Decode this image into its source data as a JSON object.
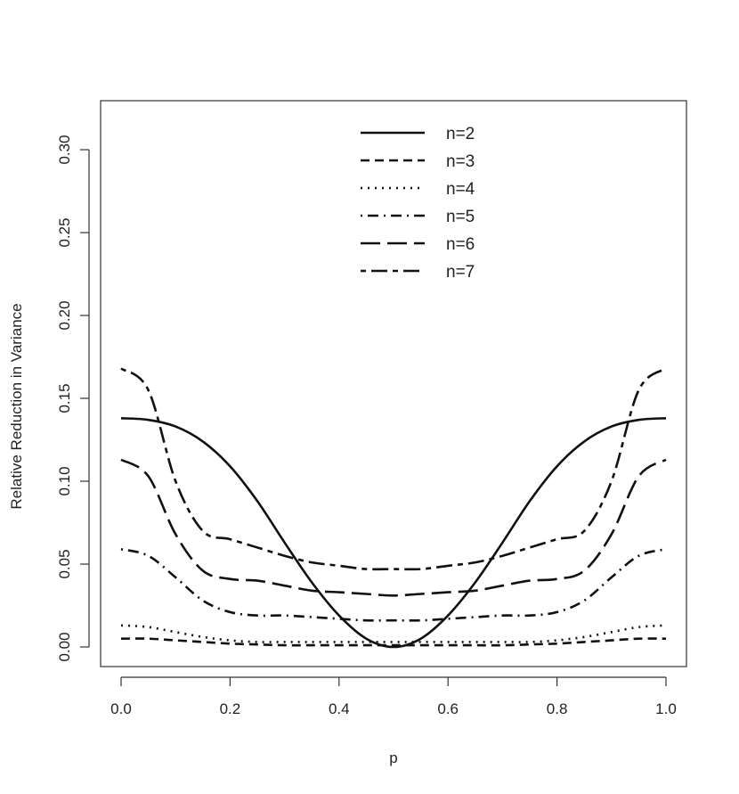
{
  "chart_data": {
    "type": "line",
    "title": "",
    "xlabel": "p",
    "ylabel": "Relative Reduction in Variance",
    "xlim": [
      0.0,
      1.0
    ],
    "ylim": [
      0.0,
      0.3
    ],
    "x_ticks": [
      "0.0",
      "0.2",
      "0.4",
      "0.6",
      "0.8",
      "1.0"
    ],
    "y_ticks": [
      "0.00",
      "0.05",
      "0.10",
      "0.15",
      "0.20",
      "0.25",
      "0.30"
    ],
    "legend_position": "top-center",
    "grid": false,
    "x": [
      0.0,
      0.05,
      0.1,
      0.15,
      0.2,
      0.25,
      0.3,
      0.35,
      0.4,
      0.45,
      0.5,
      0.55,
      0.6,
      0.65,
      0.7,
      0.75,
      0.8,
      0.85,
      0.9,
      0.95,
      1.0
    ],
    "series": [
      {
        "name": "n=2",
        "dash": "solid",
        "values": [
          0.138,
          0.137,
          0.133,
          0.124,
          0.109,
          0.088,
          0.063,
          0.039,
          0.019,
          0.005,
          0.0,
          0.005,
          0.019,
          0.039,
          0.063,
          0.088,
          0.109,
          0.124,
          0.133,
          0.137,
          0.138
        ]
      },
      {
        "name": "n=3",
        "dash": "dashed",
        "values": [
          0.005,
          0.005,
          0.004,
          0.003,
          0.002,
          0.0015,
          0.001,
          0.001,
          0.001,
          0.001,
          0.001,
          0.001,
          0.001,
          0.001,
          0.001,
          0.0015,
          0.002,
          0.003,
          0.004,
          0.005,
          0.005
        ]
      },
      {
        "name": "n=4",
        "dash": "dotted",
        "values": [
          0.013,
          0.012,
          0.009,
          0.006,
          0.004,
          0.003,
          0.003,
          0.003,
          0.003,
          0.003,
          0.003,
          0.003,
          0.003,
          0.003,
          0.003,
          0.003,
          0.004,
          0.006,
          0.009,
          0.012,
          0.013
        ]
      },
      {
        "name": "n=5",
        "dash": "dotdash",
        "values": [
          0.059,
          0.055,
          0.042,
          0.028,
          0.021,
          0.019,
          0.019,
          0.018,
          0.017,
          0.016,
          0.016,
          0.016,
          0.017,
          0.018,
          0.019,
          0.019,
          0.021,
          0.028,
          0.042,
          0.055,
          0.059
        ]
      },
      {
        "name": "n=6",
        "dash": "longdash",
        "values": [
          0.113,
          0.103,
          0.068,
          0.046,
          0.041,
          0.04,
          0.037,
          0.034,
          0.033,
          0.032,
          0.031,
          0.032,
          0.033,
          0.034,
          0.037,
          0.04,
          0.041,
          0.046,
          0.068,
          0.103,
          0.113
        ]
      },
      {
        "name": "n=7",
        "dash": "twodash",
        "values": [
          0.168,
          0.155,
          0.1,
          0.07,
          0.065,
          0.06,
          0.055,
          0.051,
          0.049,
          0.047,
          0.047,
          0.047,
          0.049,
          0.051,
          0.055,
          0.06,
          0.065,
          0.07,
          0.1,
          0.155,
          0.168
        ]
      }
    ]
  }
}
